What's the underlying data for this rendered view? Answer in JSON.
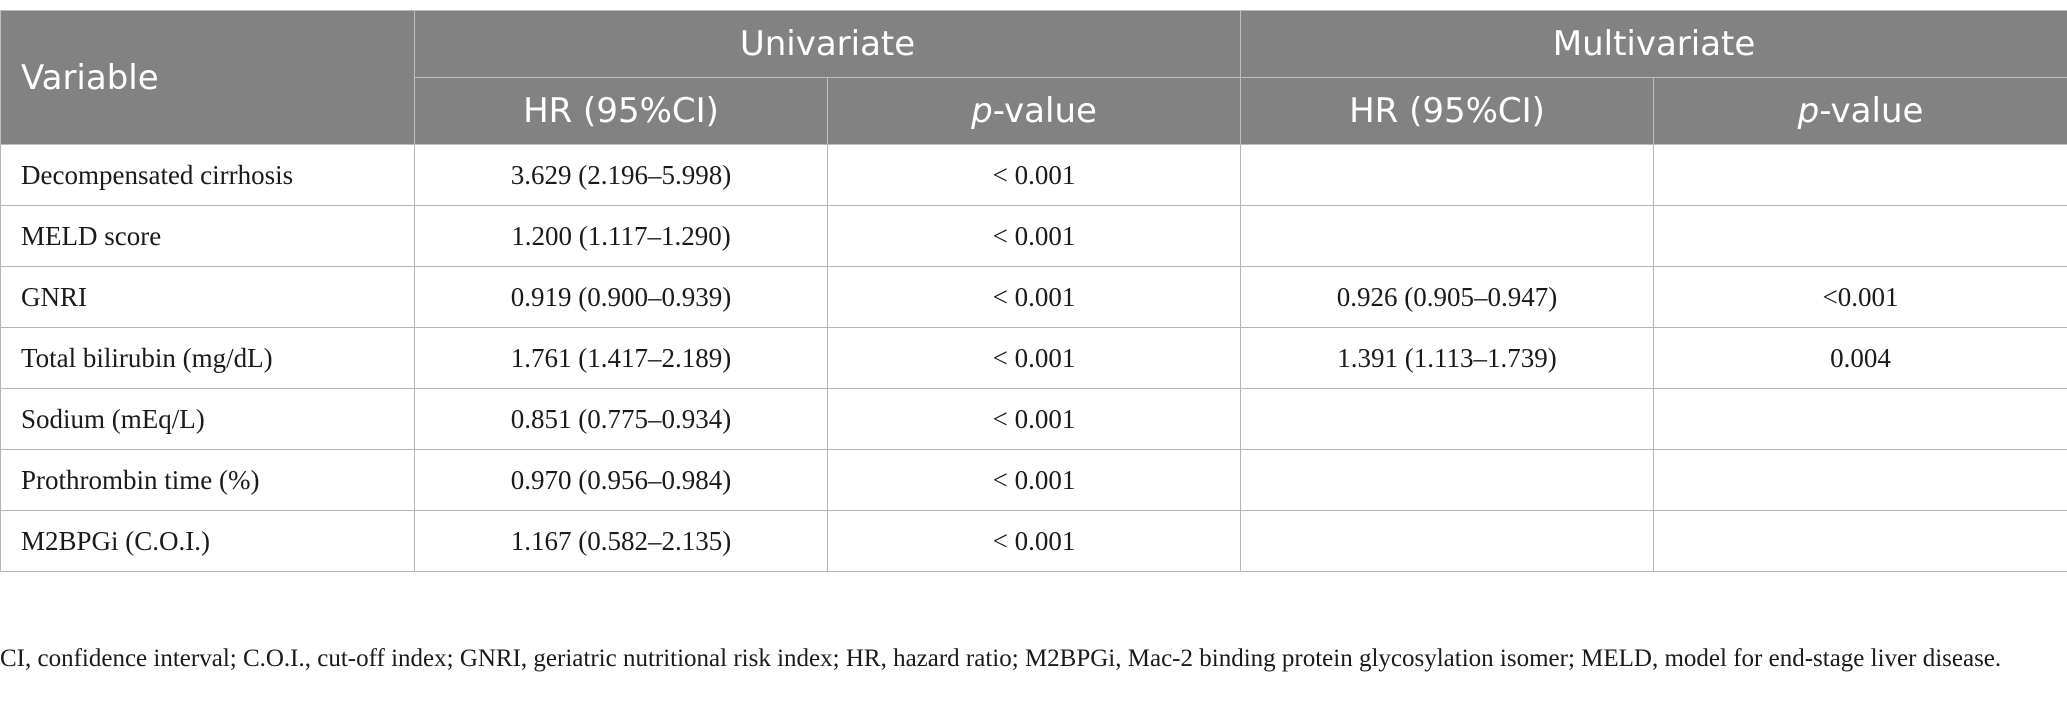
{
  "table": {
    "header": {
      "variable": "Variable",
      "univariate": "Univariate",
      "multivariate": "Multivariate",
      "hr": "HR (95%CI)",
      "p_italic": "p",
      "p_suffix": "-value"
    },
    "rows": [
      {
        "variable": "Decompensated cirrhosis",
        "uni_hr": "3.629 (2.196–5.998)",
        "uni_p": "< 0.001",
        "multi_hr": "",
        "multi_p": ""
      },
      {
        "variable": "MELD score",
        "uni_hr": "1.200 (1.117–1.290)",
        "uni_p": "< 0.001",
        "multi_hr": "",
        "multi_p": ""
      },
      {
        "variable": "GNRI",
        "uni_hr": "0.919 (0.900–0.939)",
        "uni_p": "< 0.001",
        "multi_hr": "0.926 (0.905–0.947)",
        "multi_p": "<0.001"
      },
      {
        "variable": "Total bilirubin (mg/dL)",
        "uni_hr": "1.761 (1.417–2.189)",
        "uni_p": "< 0.001",
        "multi_hr": "1.391 (1.113–1.739)",
        "multi_p": "0.004"
      },
      {
        "variable": "Sodium (mEq/L)",
        "uni_hr": "0.851 (0.775–0.934)",
        "uni_p": "< 0.001",
        "multi_hr": "",
        "multi_p": ""
      },
      {
        "variable": "Prothrombin time (%)",
        "uni_hr": "0.970 (0.956–0.984)",
        "uni_p": "< 0.001",
        "multi_hr": "",
        "multi_p": ""
      },
      {
        "variable": "M2BPGi (C.O.I.)",
        "uni_hr": "1.167 (0.582–2.135)",
        "uni_p": "< 0.001",
        "multi_hr": "",
        "multi_p": ""
      }
    ],
    "colors": {
      "header_bg": "#828282",
      "header_text": "#ffffff",
      "border": "#b5b5b5"
    }
  },
  "footnote": "CI, confidence interval; C.O.I., cut-off index; GNRI, geriatric nutritional risk index; HR, hazard ratio; M2BPGi, Mac-2 binding protein glycosylation isomer; MELD, model for end-stage liver disease."
}
